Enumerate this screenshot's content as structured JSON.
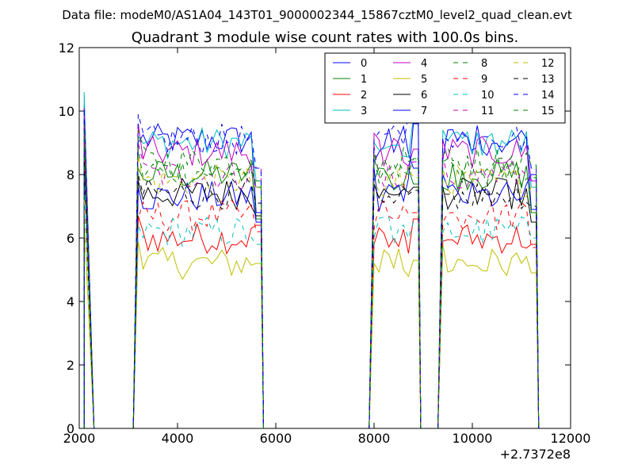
{
  "chart_data": {
    "type": "line",
    "suptitle": "Data file: modeM0/AS1A04_143T01_9000002344_15867cztM0_level2_quad_clean.evt",
    "title": "Quadrant 3 module wise count rates with 100.0s bins.",
    "xlabel": "",
    "ylabel": "",
    "x_offset_label": "+2.7372e8",
    "xlim": [
      2000,
      12000
    ],
    "ylim": [
      0,
      12
    ],
    "xticks": [
      2000,
      4000,
      6000,
      8000,
      10000,
      12000
    ],
    "yticks": [
      0,
      2,
      4,
      6,
      8,
      10,
      12
    ],
    "grid": false,
    "legend_location": "top-right",
    "legend_columns": 4,
    "levels": [
      9.1,
      8.0,
      6.0,
      9.0,
      8.7,
      5.2,
      7.4,
      7.3,
      8.1,
      6.7,
      6.2,
      8.0,
      7.8,
      7.4,
      9.1,
      8.4
    ],
    "gap_boost": {
      "sr_gap2": [
        0,
        0,
        0,
        0,
        0,
        0,
        0,
        0.6,
        0,
        0,
        0,
        0,
        0,
        0,
        0.6,
        0
      ]
    },
    "segments": [
      {
        "x_start": 2100,
        "x_end": 2300,
        "mode": "spike",
        "start_values": [
          10.2,
          9.3,
          9.0,
          10.6,
          10.1,
          6.6,
          8.6,
          8.7,
          9.6,
          9.2,
          8.0,
          9.7,
          7.2,
          8.4,
          10.1,
          9.4
        ]
      },
      {
        "x_start": 3100,
        "x_end": 5700,
        "mode": "plateau",
        "first_values": [
          9.0,
          8.2,
          6.7,
          9.2,
          9.6,
          5.9,
          7.8,
          7.6,
          8.8,
          6.6,
          6.4,
          9.0,
          8.6,
          8.0,
          9.9,
          9.4
        ],
        "last_values": [
          6.8,
          6.6,
          6.4,
          7.8,
          7.6,
          5.2,
          6.7,
          6.5,
          7.6,
          6.2,
          5.8,
          8.2,
          7.6,
          7.1,
          8.2,
          7.8
        ]
      },
      {
        "x_start": 7900,
        "x_end": 8900,
        "mode": "plateau",
        "first_values": [
          8.4,
          7.8,
          5.8,
          9.0,
          9.3,
          5.2,
          7.7,
          8.2,
          8.6,
          6.3,
          6.0,
          8.9,
          7.8,
          7.6,
          9.1,
          8.7
        ],
        "last_values": [
          8.2,
          7.7,
          6.6,
          9.8,
          8.8,
          5.3,
          7.6,
          9.6,
          8.5,
          6.8,
          6.5,
          8.4,
          7.9,
          7.5,
          9.9,
          8.5
        ]
      },
      {
        "x_start": 9300,
        "x_end": 11300,
        "mode": "plateau",
        "first_values": [
          8.5,
          7.6,
          5.9,
          9.4,
          9.1,
          5.8,
          7.6,
          8.0,
          8.4,
          6.5,
          6.2,
          8.6,
          8.2,
          7.4,
          9.2,
          8.6
        ],
        "last_values": [
          6.9,
          6.8,
          5.8,
          7.6,
          7.8,
          4.9,
          6.5,
          8.0,
          7.9,
          5.7,
          6.0,
          7.8,
          7.6,
          7.0,
          8.2,
          8.3
        ]
      }
    ],
    "series": [
      {
        "name": "0",
        "color": "#0000ff",
        "linestyle": "solid"
      },
      {
        "name": "1",
        "color": "#008000",
        "linestyle": "solid"
      },
      {
        "name": "2",
        "color": "#ff0000",
        "linestyle": "solid"
      },
      {
        "name": "3",
        "color": "#00bfbf",
        "linestyle": "solid"
      },
      {
        "name": "4",
        "color": "#bf00bf",
        "linestyle": "solid"
      },
      {
        "name": "5",
        "color": "#bfbf00",
        "linestyle": "solid"
      },
      {
        "name": "6",
        "color": "#000000",
        "linestyle": "solid"
      },
      {
        "name": "7",
        "color": "#0000ff",
        "linestyle": "solid"
      },
      {
        "name": "8",
        "color": "#008000",
        "linestyle": "dashed"
      },
      {
        "name": "9",
        "color": "#ff0000",
        "linestyle": "dashed"
      },
      {
        "name": "10",
        "color": "#00bfbf",
        "linestyle": "dashed"
      },
      {
        "name": "11",
        "color": "#bf00bf",
        "linestyle": "dashed"
      },
      {
        "name": "12",
        "color": "#bfbf00",
        "linestyle": "dashed"
      },
      {
        "name": "13",
        "color": "#000000",
        "linestyle": "dashed"
      },
      {
        "name": "14",
        "color": "#0000ff",
        "linestyle": "dashed"
      },
      {
        "name": "15",
        "color": "#008000",
        "linestyle": "dashed"
      }
    ]
  }
}
